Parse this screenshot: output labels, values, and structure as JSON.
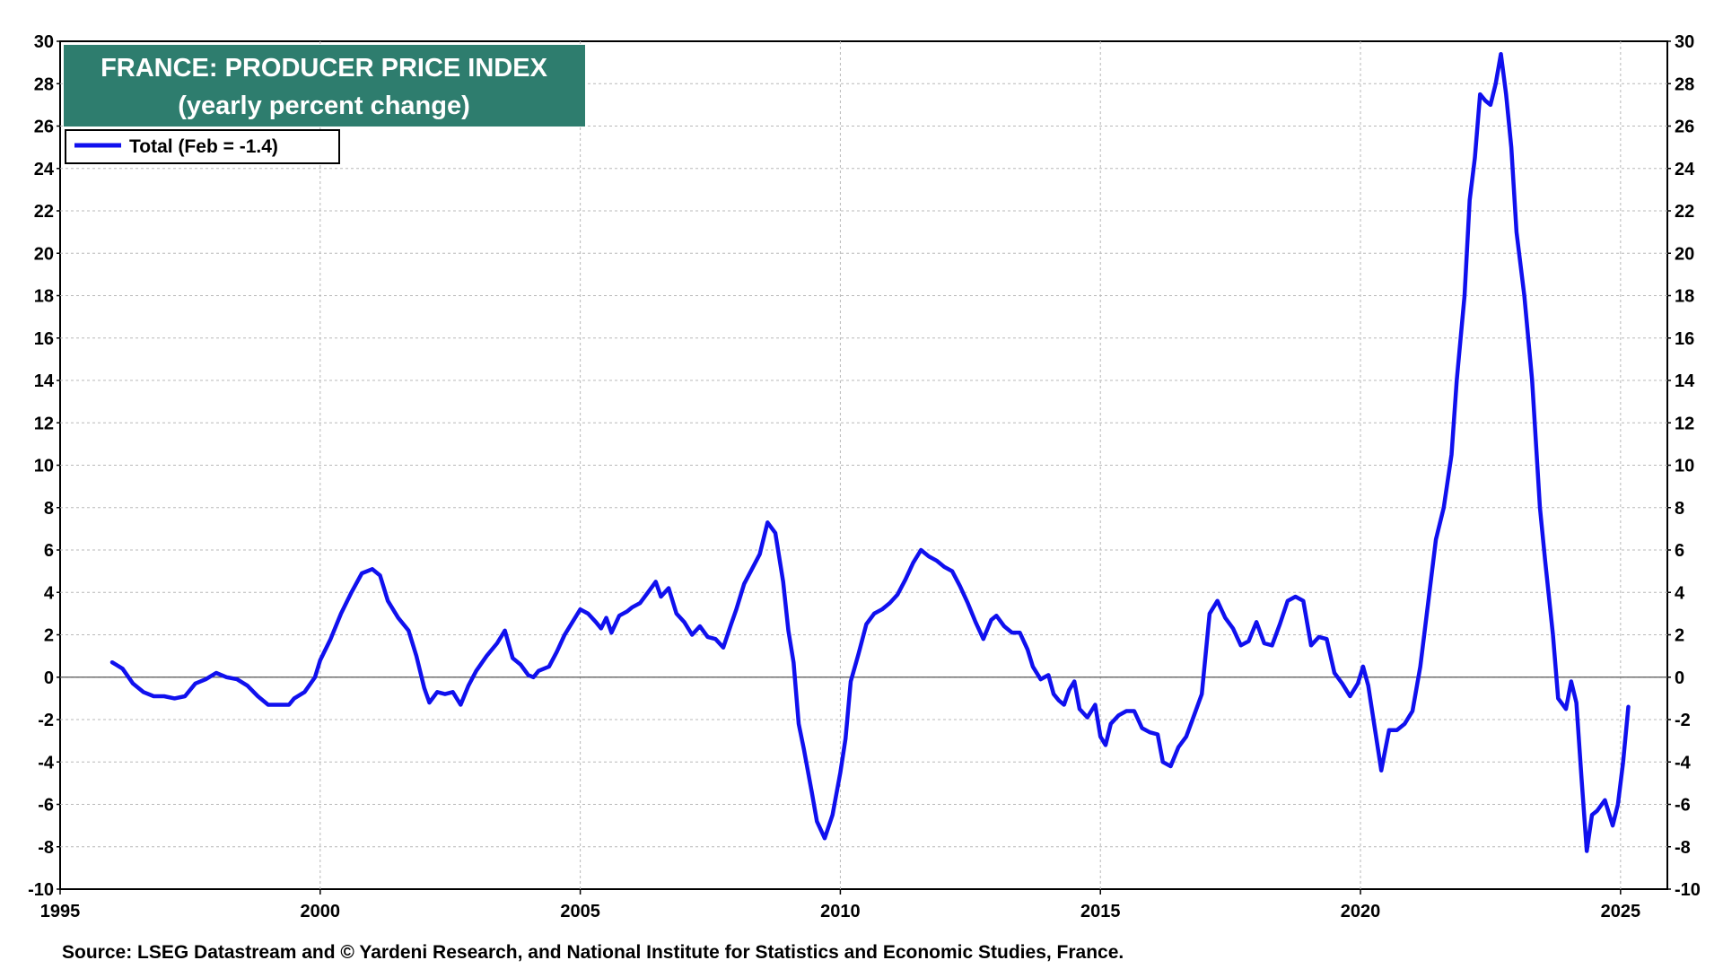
{
  "chart_data": {
    "type": "line",
    "title": "FRANCE: PRODUCER PRICE INDEX",
    "subtitle": "(yearly percent change)",
    "legend": {
      "placement": "top-left",
      "entries": [
        "Total (Feb = -1.4)"
      ]
    },
    "source": "Source: LSEG Datastream and © Yardeni Research, and National Institute for Statistics and Economic Studies, France.",
    "xlim": [
      1995,
      2025.9
    ],
    "ylim": [
      -10,
      30
    ],
    "x_ticks": [
      1995,
      2000,
      2005,
      2010,
      2015,
      2020,
      2025
    ],
    "y_ticks": [
      -10,
      -8,
      -6,
      -4,
      -2,
      0,
      2,
      4,
      6,
      8,
      10,
      12,
      14,
      16,
      18,
      20,
      22,
      24,
      26,
      28,
      30
    ],
    "grid": true,
    "colors": {
      "series": "#1010ee",
      "title_bg": "#2e7d6e",
      "title_text": "#ffffff",
      "grid": "#b8b8b8",
      "zero_line": "#555555"
    },
    "series": [
      {
        "name": "Total (Feb = -1.4)",
        "points": [
          [
            1996.0,
            0.7
          ],
          [
            1996.2,
            0.4
          ],
          [
            1996.4,
            -0.3
          ],
          [
            1996.6,
            -0.7
          ],
          [
            1996.8,
            -0.9
          ],
          [
            1997.0,
            -0.9
          ],
          [
            1997.2,
            -1.0
          ],
          [
            1997.4,
            -0.9
          ],
          [
            1997.6,
            -0.3
          ],
          [
            1997.8,
            -0.1
          ],
          [
            1998.0,
            0.2
          ],
          [
            1998.2,
            0.0
          ],
          [
            1998.4,
            -0.1
          ],
          [
            1998.6,
            -0.4
          ],
          [
            1998.8,
            -0.9
          ],
          [
            1999.0,
            -1.3
          ],
          [
            1999.2,
            -1.3
          ],
          [
            1999.4,
            -1.3
          ],
          [
            1999.5,
            -1.0
          ],
          [
            1999.7,
            -0.7
          ],
          [
            1999.9,
            0.0
          ],
          [
            2000.0,
            0.8
          ],
          [
            2000.2,
            1.8
          ],
          [
            2000.4,
            3.0
          ],
          [
            2000.6,
            4.0
          ],
          [
            2000.8,
            4.9
          ],
          [
            2001.0,
            5.1
          ],
          [
            2001.15,
            4.8
          ],
          [
            2001.3,
            3.6
          ],
          [
            2001.5,
            2.8
          ],
          [
            2001.7,
            2.2
          ],
          [
            2001.85,
            1.0
          ],
          [
            2002.0,
            -0.5
          ],
          [
            2002.1,
            -1.2
          ],
          [
            2002.25,
            -0.7
          ],
          [
            2002.4,
            -0.8
          ],
          [
            2002.55,
            -0.7
          ],
          [
            2002.7,
            -1.3
          ],
          [
            2002.85,
            -0.4
          ],
          [
            2003.0,
            0.3
          ],
          [
            2003.2,
            1.0
          ],
          [
            2003.4,
            1.6
          ],
          [
            2003.55,
            2.2
          ],
          [
            2003.7,
            0.9
          ],
          [
            2003.85,
            0.6
          ],
          [
            2004.0,
            0.1
          ],
          [
            2004.1,
            0.0
          ],
          [
            2004.2,
            0.3
          ],
          [
            2004.4,
            0.5
          ],
          [
            2004.55,
            1.2
          ],
          [
            2004.7,
            2.0
          ],
          [
            2004.85,
            2.6
          ],
          [
            2005.0,
            3.2
          ],
          [
            2005.15,
            3.0
          ],
          [
            2005.3,
            2.6
          ],
          [
            2005.4,
            2.3
          ],
          [
            2005.5,
            2.8
          ],
          [
            2005.6,
            2.1
          ],
          [
            2005.75,
            2.9
          ],
          [
            2005.9,
            3.1
          ],
          [
            2006.0,
            3.3
          ],
          [
            2006.15,
            3.5
          ],
          [
            2006.3,
            4.0
          ],
          [
            2006.45,
            4.5
          ],
          [
            2006.55,
            3.8
          ],
          [
            2006.7,
            4.2
          ],
          [
            2006.85,
            3.0
          ],
          [
            2007.0,
            2.6
          ],
          [
            2007.15,
            2.0
          ],
          [
            2007.3,
            2.4
          ],
          [
            2007.45,
            1.9
          ],
          [
            2007.6,
            1.8
          ],
          [
            2007.75,
            1.4
          ],
          [
            2007.9,
            2.5
          ],
          [
            2008.0,
            3.2
          ],
          [
            2008.15,
            4.4
          ],
          [
            2008.3,
            5.1
          ],
          [
            2008.45,
            5.8
          ],
          [
            2008.6,
            7.3
          ],
          [
            2008.75,
            6.8
          ],
          [
            2008.9,
            4.5
          ],
          [
            2009.0,
            2.2
          ],
          [
            2009.1,
            0.7
          ],
          [
            2009.2,
            -2.2
          ],
          [
            2009.3,
            -3.4
          ],
          [
            2009.45,
            -5.4
          ],
          [
            2009.55,
            -6.8
          ],
          [
            2009.7,
            -7.6
          ],
          [
            2009.85,
            -6.5
          ],
          [
            2010.0,
            -4.5
          ],
          [
            2010.1,
            -2.9
          ],
          [
            2010.2,
            -0.2
          ],
          [
            2010.35,
            1.1
          ],
          [
            2010.5,
            2.5
          ],
          [
            2010.65,
            3.0
          ],
          [
            2010.8,
            3.2
          ],
          [
            2010.95,
            3.5
          ],
          [
            2011.1,
            3.9
          ],
          [
            2011.25,
            4.6
          ],
          [
            2011.4,
            5.4
          ],
          [
            2011.55,
            6.0
          ],
          [
            2011.7,
            5.7
          ],
          [
            2011.85,
            5.5
          ],
          [
            2012.0,
            5.2
          ],
          [
            2012.15,
            5.0
          ],
          [
            2012.3,
            4.3
          ],
          [
            2012.45,
            3.5
          ],
          [
            2012.6,
            2.6
          ],
          [
            2012.75,
            1.8
          ],
          [
            2012.9,
            2.7
          ],
          [
            2013.0,
            2.9
          ],
          [
            2013.15,
            2.4
          ],
          [
            2013.3,
            2.1
          ],
          [
            2013.45,
            2.1
          ],
          [
            2013.6,
            1.3
          ],
          [
            2013.7,
            0.5
          ],
          [
            2013.85,
            -0.1
          ],
          [
            2014.0,
            0.1
          ],
          [
            2014.1,
            -0.8
          ],
          [
            2014.2,
            -1.1
          ],
          [
            2014.3,
            -1.3
          ],
          [
            2014.4,
            -0.6
          ],
          [
            2014.5,
            -0.2
          ],
          [
            2014.6,
            -1.5
          ],
          [
            2014.75,
            -1.9
          ],
          [
            2014.9,
            -1.3
          ],
          [
            2015.0,
            -2.8
          ],
          [
            2015.1,
            -3.2
          ],
          [
            2015.2,
            -2.2
          ],
          [
            2015.35,
            -1.8
          ],
          [
            2015.5,
            -1.6
          ],
          [
            2015.65,
            -1.6
          ],
          [
            2015.8,
            -2.4
          ],
          [
            2015.95,
            -2.6
          ],
          [
            2016.1,
            -2.7
          ],
          [
            2016.2,
            -4.0
          ],
          [
            2016.35,
            -4.2
          ],
          [
            2016.5,
            -3.3
          ],
          [
            2016.65,
            -2.8
          ],
          [
            2016.8,
            -1.8
          ],
          [
            2016.95,
            -0.8
          ],
          [
            2017.1,
            3.0
          ],
          [
            2017.25,
            3.6
          ],
          [
            2017.4,
            2.8
          ],
          [
            2017.55,
            2.3
          ],
          [
            2017.7,
            1.5
          ],
          [
            2017.85,
            1.7
          ],
          [
            2018.0,
            2.6
          ],
          [
            2018.15,
            1.6
          ],
          [
            2018.3,
            1.5
          ],
          [
            2018.45,
            2.5
          ],
          [
            2018.6,
            3.6
          ],
          [
            2018.75,
            3.8
          ],
          [
            2018.9,
            3.6
          ],
          [
            2019.05,
            1.5
          ],
          [
            2019.2,
            1.9
          ],
          [
            2019.35,
            1.8
          ],
          [
            2019.5,
            0.2
          ],
          [
            2019.65,
            -0.3
          ],
          [
            2019.8,
            -0.9
          ],
          [
            2019.95,
            -0.3
          ],
          [
            2020.05,
            0.5
          ],
          [
            2020.15,
            -0.4
          ],
          [
            2020.3,
            -2.8
          ],
          [
            2020.4,
            -4.4
          ],
          [
            2020.55,
            -2.5
          ],
          [
            2020.7,
            -2.5
          ],
          [
            2020.85,
            -2.2
          ],
          [
            2021.0,
            -1.6
          ],
          [
            2021.15,
            0.5
          ],
          [
            2021.3,
            3.5
          ],
          [
            2021.45,
            6.5
          ],
          [
            2021.6,
            8.0
          ],
          [
            2021.75,
            10.5
          ],
          [
            2021.85,
            14.0
          ],
          [
            2022.0,
            18.0
          ],
          [
            2022.1,
            22.5
          ],
          [
            2022.2,
            24.5
          ],
          [
            2022.3,
            27.5
          ],
          [
            2022.4,
            27.2
          ],
          [
            2022.5,
            27.0
          ],
          [
            2022.6,
            28.0
          ],
          [
            2022.7,
            29.4
          ],
          [
            2022.8,
            27.5
          ],
          [
            2022.9,
            25.0
          ],
          [
            2023.0,
            21.0
          ],
          [
            2023.15,
            18.0
          ],
          [
            2023.3,
            14.0
          ],
          [
            2023.45,
            8.0
          ],
          [
            2023.55,
            5.5
          ],
          [
            2023.7,
            2.0
          ],
          [
            2023.8,
            -1.0
          ],
          [
            2023.95,
            -1.5
          ],
          [
            2024.05,
            -0.2
          ],
          [
            2024.15,
            -1.2
          ],
          [
            2024.25,
            -4.8
          ],
          [
            2024.35,
            -8.2
          ],
          [
            2024.45,
            -6.5
          ],
          [
            2024.55,
            -6.3
          ],
          [
            2024.7,
            -5.8
          ],
          [
            2024.85,
            -7.0
          ],
          [
            2024.95,
            -6.0
          ],
          [
            2025.05,
            -4.0
          ],
          [
            2025.15,
            -1.4
          ]
        ]
      }
    ]
  }
}
